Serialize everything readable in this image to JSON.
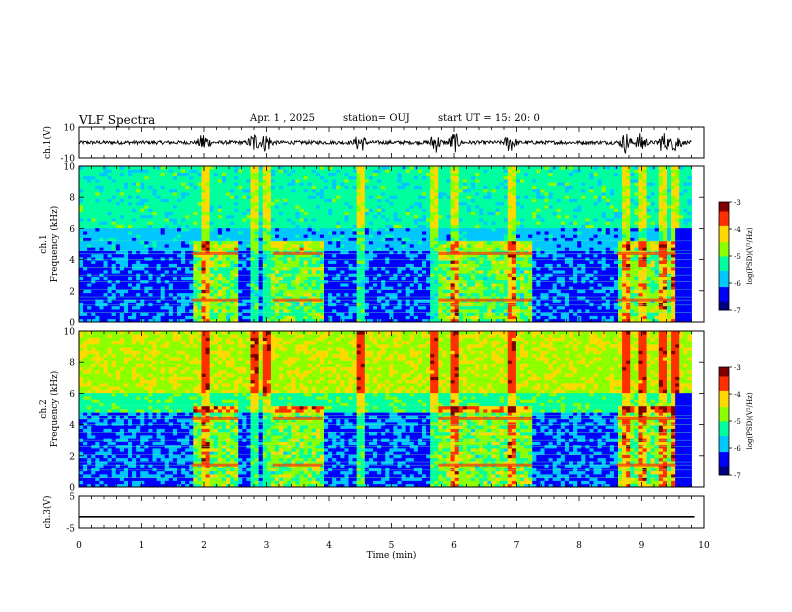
{
  "header": {
    "title": "VLF Spectra",
    "date": "Apr. 1 , 2025",
    "station": "station= OUJ",
    "start": "start UT = 15: 20: 0"
  },
  "panels": {
    "ch1_wave_label": "ch.1(V)",
    "ch1_spec_label_1": "ch.1",
    "ch1_spec_label_2": "Frequency (kHz)",
    "ch2_spec_label_1": "ch.2",
    "ch2_spec_label_2": "Frequency (kHz)",
    "ch3_wave_label": "ch.3(V)",
    "colorbar_label": "log(PSD)(V²/Hz)"
  },
  "colors": {
    "background": "#ffffff",
    "colormap": [
      "#00007f",
      "#0000ff",
      "#00c8ff",
      "#00ff9f",
      "#8cff00",
      "#ffd900",
      "#ff3000",
      "#800000"
    ]
  },
  "chart_data": {
    "type": "heatmap",
    "title": "VLF Spectra",
    "xlabel": "Time (min)",
    "xlim": [
      0,
      10
    ],
    "x_ticks": [
      "0",
      "1",
      "2",
      "3",
      "4",
      "5",
      "6",
      "7",
      "8",
      "9",
      "10"
    ],
    "ch1_wave": {
      "ylim": [
        -10,
        10
      ],
      "y_ticks": [
        "10",
        "-10"
      ],
      "baseline": 0
    },
    "ch3_wave": {
      "ylim": [
        -5,
        5
      ],
      "y_ticks": [
        "5",
        "-5"
      ],
      "baseline": -1.5
    },
    "spectrogram_ylim": [
      0,
      10
    ],
    "spectrogram_y_ticks": [
      "0",
      "2",
      "4",
      "6",
      "8",
      "10"
    ],
    "colorbar": {
      "range": [
        -7,
        -3
      ],
      "ticks": [
        "-3",
        "-4",
        "-5",
        "-6",
        "-7"
      ]
    },
    "impulsive_bursts_min": [
      2.0,
      2.8,
      3.0,
      4.5,
      5.7,
      6.0,
      6.9,
      8.75,
      9.0,
      9.35,
      9.55
    ],
    "interference_segments_min": [
      [
        1.8,
        2.55
      ],
      [
        3.1,
        3.9
      ],
      [
        5.75,
        6.6
      ],
      [
        6.6,
        7.25
      ],
      [
        8.6,
        9.55
      ]
    ],
    "interference_lines_khz": [
      0.6,
      1.1,
      1.4,
      1.6,
      2.1,
      2.6,
      3.0,
      3.5,
      4.0,
      4.4,
      4.6,
      5.2
    ]
  }
}
